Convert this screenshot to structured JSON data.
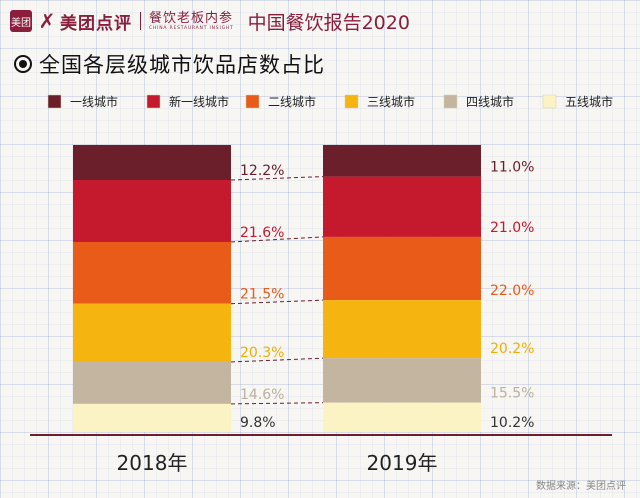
{
  "header": {
    "logo_box_text": "美团",
    "logo_mark": "袋",
    "brand": "美团点评",
    "sub_brand": "餐饮老板内参",
    "sub_brand_en": "CHINA RESTAURANT INSIGHT",
    "report_title": "中国餐饮报告2020"
  },
  "page_title": "全国各层级城市饮品店数占比",
  "source": "数据来源：美团点评",
  "colors": {
    "tier1": "#6a1f2b",
    "new_tier1": "#c5192d",
    "tier2": "#e85b19",
    "tier3": "#f5b40f",
    "tier4": "#c3b59f",
    "tier5": "#fbf3c4",
    "axis": "#6a1f2b"
  },
  "chart_data": {
    "type": "bar",
    "stacked": true,
    "categories": [
      "2018年",
      "2019年"
    ],
    "series": [
      {
        "name": "一线城市",
        "values": [
          12.2,
          11.0
        ],
        "labels": [
          "12.2%",
          "11.0%"
        ],
        "color": "#6a1f2b",
        "label_color": "#6a1f2b"
      },
      {
        "name": "新一线城市",
        "values": [
          21.6,
          21.0
        ],
        "labels": [
          "21.6%",
          "21.0%"
        ],
        "color": "#c5192d",
        "label_color": "#c5192d"
      },
      {
        "name": "二线城市",
        "values": [
          21.5,
          22.0
        ],
        "labels": [
          "21.5%",
          "22.0%"
        ],
        "color": "#e85b19",
        "label_color": "#e85b19"
      },
      {
        "name": "三线城市",
        "values": [
          20.3,
          20.2
        ],
        "labels": [
          "20.3%",
          "20.2%"
        ],
        "color": "#f5b40f",
        "label_color": "#f0b000"
      },
      {
        "name": "四线城市",
        "values": [
          14.6,
          15.5
        ],
        "labels": [
          "14.6%",
          "15.5%"
        ],
        "color": "#c3b59f",
        "label_color": "#bdb09c"
      },
      {
        "name": "五线城市",
        "values": [
          9.8,
          10.2
        ],
        "labels": [
          "9.8%",
          "10.2%"
        ],
        "color": "#fbf3c4",
        "label_color": "#333333"
      }
    ],
    "legend_position": "top",
    "grid": true
  }
}
